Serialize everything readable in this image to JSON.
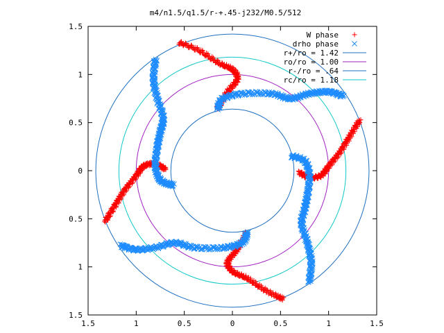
{
  "chart_data": {
    "type": "scatter",
    "title": "m4/n1.5/q1.5/r-+.45-j232/M0.5/512",
    "xlim": [
      -1.5,
      1.5
    ],
    "ylim": [
      -1.5,
      1.5
    ],
    "x_ticks": [
      {
        "value": -1.5,
        "label": "1.5"
      },
      {
        "value": -1.0,
        "label": "1"
      },
      {
        "value": -0.5,
        "label": "0.5"
      },
      {
        "value": 0.0,
        "label": "0"
      },
      {
        "value": 0.5,
        "label": "0.5"
      },
      {
        "value": 1.0,
        "label": "1"
      },
      {
        "value": 1.5,
        "label": "1.5"
      }
    ],
    "y_ticks": [
      {
        "value": 1.5,
        "label": "1.5"
      },
      {
        "value": 1.0,
        "label": "1"
      },
      {
        "value": 0.5,
        "label": "0.5"
      },
      {
        "value": 0.0,
        "label": "0"
      },
      {
        "value": -0.5,
        "label": "0.5"
      },
      {
        "value": -1.0,
        "label": "1"
      },
      {
        "value": -1.5,
        "label": "1.5"
      }
    ],
    "grid": false,
    "legend_position": "top-right",
    "circles": [
      {
        "name": "r+/ro = 1.42",
        "radius": 1.42,
        "color": "#1f6fbf"
      },
      {
        "name": "ro/ro = 1.00",
        "radius": 1.0,
        "color": "#a020c0"
      },
      {
        "name": "r-/ro = .64",
        "radius": 0.64,
        "color": "#1f6fbf"
      },
      {
        "name": "rc/ro = 1.18",
        "radius": 1.18,
        "color": "#10c8c8"
      }
    ],
    "series": [
      {
        "name": "W phase",
        "marker": "+",
        "color": "#ff0000",
        "branch_centerlines": [
          [
            [
              -0.55,
              1.33
            ],
            [
              -0.35,
              1.25
            ],
            [
              -0.15,
              1.12
            ],
            [
              0.0,
              1.05
            ],
            [
              0.05,
              0.95
            ],
            [
              -0.05,
              0.82
            ],
            [
              -0.15,
              0.65
            ]
          ],
          [
            [
              1.32,
              0.52
            ],
            [
              1.22,
              0.36
            ],
            [
              1.12,
              0.2
            ],
            [
              1.0,
              0.05
            ],
            [
              0.92,
              -0.05
            ],
            [
              0.8,
              -0.07
            ],
            [
              0.7,
              -0.02
            ]
          ],
          [
            [
              0.52,
              -1.33
            ],
            [
              0.35,
              -1.25
            ],
            [
              0.15,
              -1.12
            ],
            [
              0.0,
              -1.05
            ],
            [
              -0.05,
              -0.95
            ],
            [
              0.05,
              -0.82
            ],
            [
              0.15,
              -0.65
            ]
          ],
          [
            [
              -1.32,
              -0.52
            ],
            [
              -1.22,
              -0.36
            ],
            [
              -1.12,
              -0.2
            ],
            [
              -1.0,
              -0.05
            ],
            [
              -0.92,
              0.05
            ],
            [
              -0.8,
              0.07
            ],
            [
              -0.7,
              0.02
            ]
          ]
        ]
      },
      {
        "name": "drho phase",
        "marker": "x",
        "color": "#1e8cff",
        "branch_centerlines": [
          [
            [
              -0.15,
              0.65
            ],
            [
              -0.1,
              0.75
            ],
            [
              0.1,
              0.8
            ],
            [
              0.4,
              0.8
            ],
            [
              0.6,
              0.75
            ],
            [
              0.8,
              0.8
            ],
            [
              1.0,
              0.82
            ],
            [
              1.15,
              0.78
            ]
          ],
          [
            [
              0.62,
              0.15
            ],
            [
              0.75,
              0.1
            ],
            [
              0.8,
              -0.05
            ],
            [
              0.78,
              -0.25
            ],
            [
              0.75,
              -0.4
            ],
            [
              0.72,
              -0.55
            ],
            [
              0.78,
              -0.75
            ],
            [
              0.82,
              -0.95
            ],
            [
              0.8,
              -1.15
            ]
          ],
          [
            [
              0.15,
              -0.65
            ],
            [
              0.1,
              -0.75
            ],
            [
              -0.1,
              -0.8
            ],
            [
              -0.4,
              -0.8
            ],
            [
              -0.6,
              -0.75
            ],
            [
              -0.8,
              -0.8
            ],
            [
              -1.0,
              -0.82
            ],
            [
              -1.15,
              -0.78
            ]
          ],
          [
            [
              -0.62,
              -0.15
            ],
            [
              -0.75,
              -0.1
            ],
            [
              -0.8,
              0.05
            ],
            [
              -0.78,
              0.25
            ],
            [
              -0.75,
              0.4
            ],
            [
              -0.72,
              0.55
            ],
            [
              -0.78,
              0.75
            ],
            [
              -0.82,
              0.95
            ],
            [
              -0.8,
              1.15
            ]
          ]
        ]
      }
    ],
    "legend": [
      {
        "label": "W phase",
        "kind": "marker",
        "marker": "+",
        "color": "#ff0000"
      },
      {
        "label": "drho phase",
        "kind": "marker",
        "marker": "x",
        "color": "#1e8cff"
      },
      {
        "label": "r+/ro = 1.42",
        "kind": "line",
        "color": "#1f6fbf"
      },
      {
        "label": "ro/ro = 1.00",
        "kind": "line",
        "color": "#a020c0"
      },
      {
        "label": "r-/ro = .64",
        "kind": "line",
        "color": "#1f6fbf"
      },
      {
        "label": "rc/ro = 1.18",
        "kind": "line",
        "color": "#10c8c8"
      }
    ]
  }
}
